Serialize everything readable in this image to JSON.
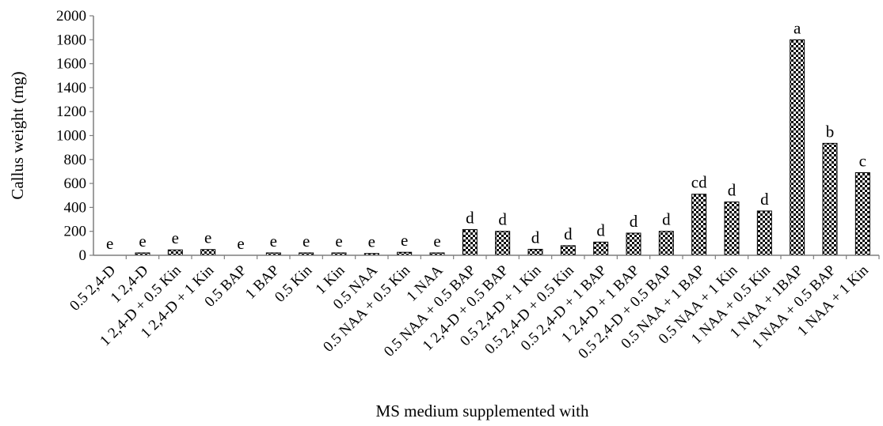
{
  "chart_data": {
    "type": "bar",
    "xlabel": "MS medium supplemented with",
    "ylabel": "Callus weight (mg)",
    "ylim": [
      0,
      2000
    ],
    "yticks": [
      0,
      200,
      400,
      600,
      800,
      1000,
      1200,
      1400,
      1600,
      1800,
      2000
    ],
    "grid": false,
    "bar_pattern": "checkered",
    "colors": {
      "bar_dark": "#000000",
      "bar_light": "#ffffff",
      "axis": "#7f7f7f"
    },
    "categories": [
      "0.5 2,4-D",
      "1 2,4-D",
      "1 2,4-D + 0.5 Kin",
      "1 2,4-D + 1 Kin",
      "0.5 BAP",
      "1 BAP",
      "0.5 Kin",
      "1 Kin",
      "0.5 NAA",
      "0.5 NAA + 0.5 Kin",
      "1 NAA",
      "0.5 NAA + 0.5 BAP",
      "1 2,4-D + 0.5 BAP",
      "0.5 2,4-D + 1 Kin",
      "0.5 2,4-D + 0.5 Kin",
      "0.5 2,4-D + 1 BAP",
      "1 2,4-D + 1 BAP",
      "0.5 2,4-D + 0.5 BAP",
      "0.5 NAA + 1 BAP",
      "0.5 NAA + 1 Kin",
      "1 NAA + 0.5 Kin",
      "1 NAA + 1BAP",
      "1 NAA + 0.5 BAP",
      "1 NAA + 1 Kin"
    ],
    "values": [
      0,
      20,
      45,
      48,
      0,
      20,
      20,
      20,
      15,
      25,
      20,
      215,
      200,
      50,
      80,
      110,
      185,
      200,
      510,
      445,
      370,
      1800,
      935,
      690
    ],
    "annotations": [
      "e",
      "e",
      "e",
      "e",
      "e",
      "e",
      "e",
      "e",
      "e",
      "e",
      "e",
      "d",
      "d",
      "d",
      "d",
      "d",
      "d",
      "d",
      "cd",
      "d",
      "d",
      "a",
      "b",
      "c"
    ]
  }
}
